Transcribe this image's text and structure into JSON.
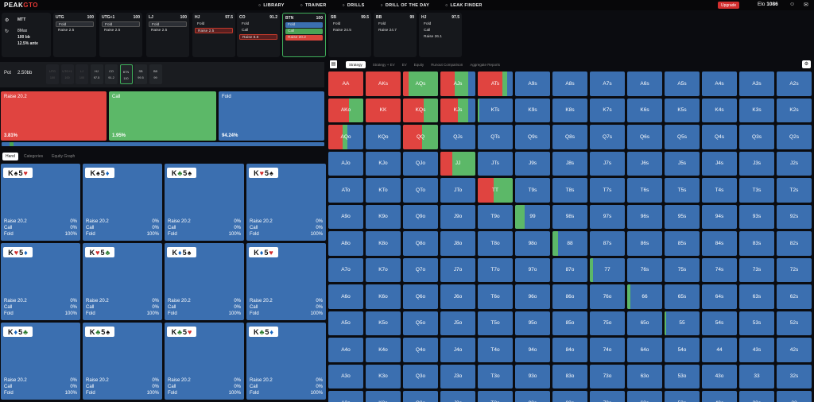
{
  "brand": {
    "prefix": "PEAK",
    "suffix": "GTO"
  },
  "nav": [
    {
      "icon": "library-icon",
      "label": "LIBRARY"
    },
    {
      "icon": "trainer-icon",
      "label": "TRAINER"
    },
    {
      "icon": "drills-icon",
      "label": "DRILLS"
    },
    {
      "icon": "calendar-icon",
      "label": "DRILL OF THE DAY"
    },
    {
      "icon": "bulb-icon",
      "label": "LEAK FINDER"
    }
  ],
  "upgrade": "Upgrade",
  "elo": {
    "label": "Elo",
    "value": "1086"
  },
  "settings": {
    "mode": "MTT",
    "players": "8Max",
    "stack": "100 bb",
    "ante": "12.5% ante"
  },
  "positions": [
    {
      "name": "UTG",
      "stack": "100",
      "actions": [
        "Fold",
        "Raise 2.5"
      ],
      "sel": 0
    },
    {
      "name": "UTG+1",
      "stack": "100",
      "actions": [
        "Fold",
        "Raise 2.5"
      ],
      "sel": 0
    },
    {
      "name": "LJ",
      "stack": "100",
      "actions": [
        "Fold",
        "Raise 2.5"
      ],
      "sel": 0
    },
    {
      "name": "HJ",
      "stack": "97.5",
      "actions": [
        "Fold",
        "Raise 2.5"
      ],
      "sel": 1
    },
    {
      "name": "CO",
      "stack": "91.2",
      "actions": [
        "Fold",
        "Call",
        "Raise 8.8"
      ],
      "sel": 2
    },
    {
      "name": "BTN",
      "stack": "100",
      "actions": [
        "Fold",
        "Call",
        "Raise 20.2"
      ],
      "sel": -1
    },
    {
      "name": "SB",
      "stack": "99.5",
      "actions": [
        "Fold",
        "Raise 24.5"
      ],
      "sel": -1
    },
    {
      "name": "BB",
      "stack": "99",
      "actions": [
        "Fold",
        "Raise 24.7"
      ],
      "sel": -1
    },
    {
      "name": "HJ",
      "stack": "97.5",
      "actions": [
        "Fold",
        "Call",
        "Raise 26.1"
      ],
      "sel": -1
    }
  ],
  "pot": {
    "label": "Pot",
    "value": "2.50bb"
  },
  "mini_positions": [
    {
      "name": "UTG",
      "stack": "100"
    },
    {
      "name": "UTG+1",
      "stack": "100"
    },
    {
      "name": "LJ",
      "stack": "100"
    },
    {
      "name": "HJ",
      "stack": "97.5"
    },
    {
      "name": "CO",
      "stack": "91.2"
    },
    {
      "name": "BTN",
      "stack": "100"
    },
    {
      "name": "SB",
      "stack": "99.5"
    },
    {
      "name": "BB",
      "stack": "99"
    }
  ],
  "action_freqs": [
    {
      "label": "Raise 20.2",
      "pct": "3.81%",
      "color": "#e04440"
    },
    {
      "label": "Call",
      "pct": "1.95%",
      "color": "#5cb868"
    },
    {
      "label": "Fold",
      "pct": "94.24%",
      "color": "#3b6fb0"
    }
  ],
  "sub_tabs": [
    "Hand",
    "Categories",
    "Equity Graph"
  ],
  "hand_cards": [
    {
      "r1": "K",
      "s1": "♠",
      "r2": "5",
      "s2": "♥"
    },
    {
      "r1": "K",
      "s1": "♠",
      "r2": "5",
      "s2": "♦"
    },
    {
      "r1": "K",
      "s1": "♣",
      "r2": "5",
      "s2": "♠"
    },
    {
      "r1": "K",
      "s1": "♥",
      "r2": "5",
      "s2": "♠"
    },
    {
      "r1": "K",
      "s1": "♥",
      "r2": "5",
      "s2": "♦"
    },
    {
      "r1": "K",
      "s1": "♥",
      "r2": "5",
      "s2": "♣"
    },
    {
      "r1": "K",
      "s1": "♦",
      "r2": "5",
      "s2": "♠"
    },
    {
      "r1": "K",
      "s1": "♦",
      "r2": "5",
      "s2": "♥"
    },
    {
      "r1": "K",
      "s1": "♦",
      "r2": "5",
      "s2": "♣"
    },
    {
      "r1": "K",
      "s1": "♣",
      "r2": "5",
      "s2": "♠"
    },
    {
      "r1": "K",
      "s1": "♣",
      "r2": "5",
      "s2": "♥"
    },
    {
      "r1": "K",
      "s1": "♣",
      "r2": "5",
      "s2": "♦"
    }
  ],
  "hand_rows": [
    {
      "label": "Raise 20.2",
      "value": "0%"
    },
    {
      "label": "Call",
      "value": "0%"
    },
    {
      "label": "Fold",
      "value": "100%"
    }
  ],
  "right_tabs": [
    "Strategy",
    "Strategy + EV",
    "EV",
    "Equity",
    "Runout Comparison",
    "Aggregate Reports"
  ],
  "colors": {
    "raise": "#e04440",
    "call": "#5cb868",
    "fold": "#3b6fb0"
  },
  "matrix": {
    "ranks": [
      "A",
      "K",
      "Q",
      "J",
      "T",
      "9",
      "8",
      "7",
      "6",
      "5",
      "4",
      "3",
      "2"
    ],
    "mixed": {
      "AA": {
        "r": 1,
        "c": 0
      },
      "AKs": {
        "r": 1,
        "c": 0
      },
      "AQs": {
        "r": 0.15,
        "c": 0.85
      },
      "AJs": {
        "r": 0.4,
        "c": 0.4
      },
      "ATs": {
        "r": 0.7,
        "c": 0.15
      },
      "AKo": {
        "r": 0.6,
        "c": 0.4
      },
      "KK": {
        "r": 1,
        "c": 0
      },
      "KQs": {
        "r": 0.6,
        "c": 0.4
      },
      "KJs": {
        "r": 0.5,
        "c": 0.3
      },
      "KTs": {
        "r": 0,
        "c": 0.05
      },
      "AQo": {
        "r": 0.4,
        "c": 0.15
      },
      "QQ": {
        "r": 0.55,
        "c": 0.45
      },
      "JJ": {
        "r": 0.35,
        "c": 0.65
      },
      "TT": {
        "r": 0.45,
        "c": 0.55
      },
      "99": {
        "r": 0,
        "c": 0.28
      },
      "88": {
        "r": 0,
        "c": 0.15
      },
      "77": {
        "r": 0,
        "c": 0.08
      },
      "66": {
        "r": 0,
        "c": 0.08
      },
      "55": {
        "r": 0,
        "c": 0.04
      }
    }
  }
}
